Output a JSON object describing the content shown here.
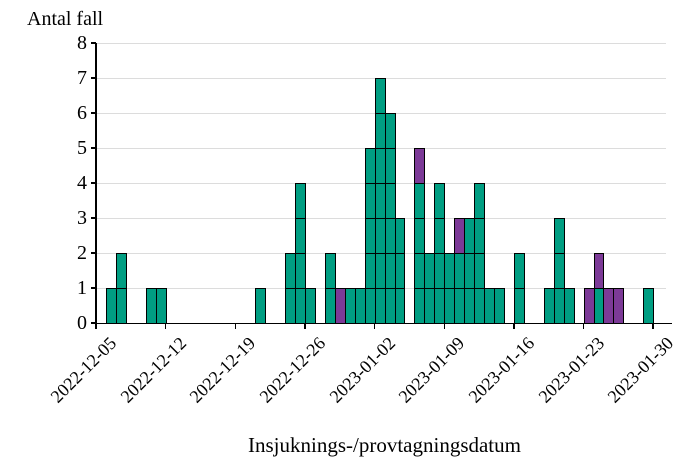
{
  "labels": {
    "y_axis_title": "Antal fall",
    "x_axis_title": "Insjuknings-/provtagningsdatum"
  },
  "chart_data": {
    "type": "bar",
    "stacked": true,
    "orientation": "vertical",
    "ylabel": "Antal fall",
    "xlabel": "Insjuknings-/provtagningsdatum",
    "ylim": [
      0,
      8
    ],
    "y_ticks": [
      "0",
      "1",
      "2",
      "3",
      "4",
      "5",
      "6",
      "7",
      "8"
    ],
    "grid": "horizontal-light-gray-every-integer",
    "legend_position": "none",
    "unit_cell_outlines": true,
    "axis_color": "#000000",
    "gridline_color": "#DCDCDC",
    "x_start_date": "2022-12-05",
    "x_tick_labels": [
      {
        "label": "2022-12-05",
        "day_index": 0
      },
      {
        "label": "2022-12-12",
        "day_index": 7
      },
      {
        "label": "2022-12-19",
        "day_index": 14
      },
      {
        "label": "2022-12-26",
        "day_index": 21
      },
      {
        "label": "2023-01-02",
        "day_index": 28
      },
      {
        "label": "2023-01-09",
        "day_index": 35
      },
      {
        "label": "2023-01-16",
        "day_index": 42
      },
      {
        "label": "2023-01-23",
        "day_index": 49
      },
      {
        "label": "2023-01-30",
        "day_index": 56
      }
    ],
    "series": [
      {
        "name": "teal-cases",
        "color": "#009E82"
      },
      {
        "name": "purple-cases",
        "color": "#7C3A97"
      }
    ],
    "bars": [
      {
        "date": "2022-12-06",
        "day_index": 1,
        "teal": 1,
        "purple": 0
      },
      {
        "date": "2022-12-07",
        "day_index": 2,
        "teal": 2,
        "purple": 0
      },
      {
        "date": "2022-12-10",
        "day_index": 5,
        "teal": 1,
        "purple": 0
      },
      {
        "date": "2022-12-11",
        "day_index": 6,
        "teal": 1,
        "purple": 0
      },
      {
        "date": "2022-12-21",
        "day_index": 16,
        "teal": 1,
        "purple": 0
      },
      {
        "date": "2022-12-24",
        "day_index": 19,
        "teal": 2,
        "purple": 0
      },
      {
        "date": "2022-12-25",
        "day_index": 20,
        "teal": 4,
        "purple": 0
      },
      {
        "date": "2022-12-26",
        "day_index": 21,
        "teal": 1,
        "purple": 0
      },
      {
        "date": "2022-12-28",
        "day_index": 23,
        "teal": 2,
        "purple": 0
      },
      {
        "date": "2022-12-29",
        "day_index": 24,
        "teal": 0,
        "purple": 1
      },
      {
        "date": "2022-12-30",
        "day_index": 25,
        "teal": 1,
        "purple": 0
      },
      {
        "date": "2022-12-31",
        "day_index": 26,
        "teal": 1,
        "purple": 0
      },
      {
        "date": "2023-01-01",
        "day_index": 27,
        "teal": 5,
        "purple": 0
      },
      {
        "date": "2023-01-02",
        "day_index": 28,
        "teal": 7,
        "purple": 0
      },
      {
        "date": "2023-01-03",
        "day_index": 29,
        "teal": 6,
        "purple": 0
      },
      {
        "date": "2023-01-04",
        "day_index": 30,
        "teal": 3,
        "purple": 0
      },
      {
        "date": "2023-01-06",
        "day_index": 32,
        "teal": 4,
        "purple": 1
      },
      {
        "date": "2023-01-07",
        "day_index": 33,
        "teal": 2,
        "purple": 0
      },
      {
        "date": "2023-01-08",
        "day_index": 34,
        "teal": 4,
        "purple": 0
      },
      {
        "date": "2023-01-09",
        "day_index": 35,
        "teal": 2,
        "purple": 0
      },
      {
        "date": "2023-01-10",
        "day_index": 36,
        "teal": 2,
        "purple": 1
      },
      {
        "date": "2023-01-11",
        "day_index": 37,
        "teal": 3,
        "purple": 0
      },
      {
        "date": "2023-01-12",
        "day_index": 38,
        "teal": 4,
        "purple": 0
      },
      {
        "date": "2023-01-13",
        "day_index": 39,
        "teal": 1,
        "purple": 0
      },
      {
        "date": "2023-01-14",
        "day_index": 40,
        "teal": 1,
        "purple": 0
      },
      {
        "date": "2023-01-16",
        "day_index": 42,
        "teal": 2,
        "purple": 0
      },
      {
        "date": "2023-01-19",
        "day_index": 45,
        "teal": 1,
        "purple": 0
      },
      {
        "date": "2023-01-20",
        "day_index": 46,
        "teal": 3,
        "purple": 0
      },
      {
        "date": "2023-01-21",
        "day_index": 47,
        "teal": 1,
        "purple": 0
      },
      {
        "date": "2023-01-23",
        "day_index": 49,
        "teal": 0,
        "purple": 1
      },
      {
        "date": "2023-01-24",
        "day_index": 50,
        "teal": 1,
        "purple": 1
      },
      {
        "date": "2023-01-25",
        "day_index": 51,
        "teal": 0,
        "purple": 1
      },
      {
        "date": "2023-01-26",
        "day_index": 52,
        "teal": 0,
        "purple": 1
      },
      {
        "date": "2023-01-29",
        "day_index": 55,
        "teal": 1,
        "purple": 0
      }
    ]
  }
}
